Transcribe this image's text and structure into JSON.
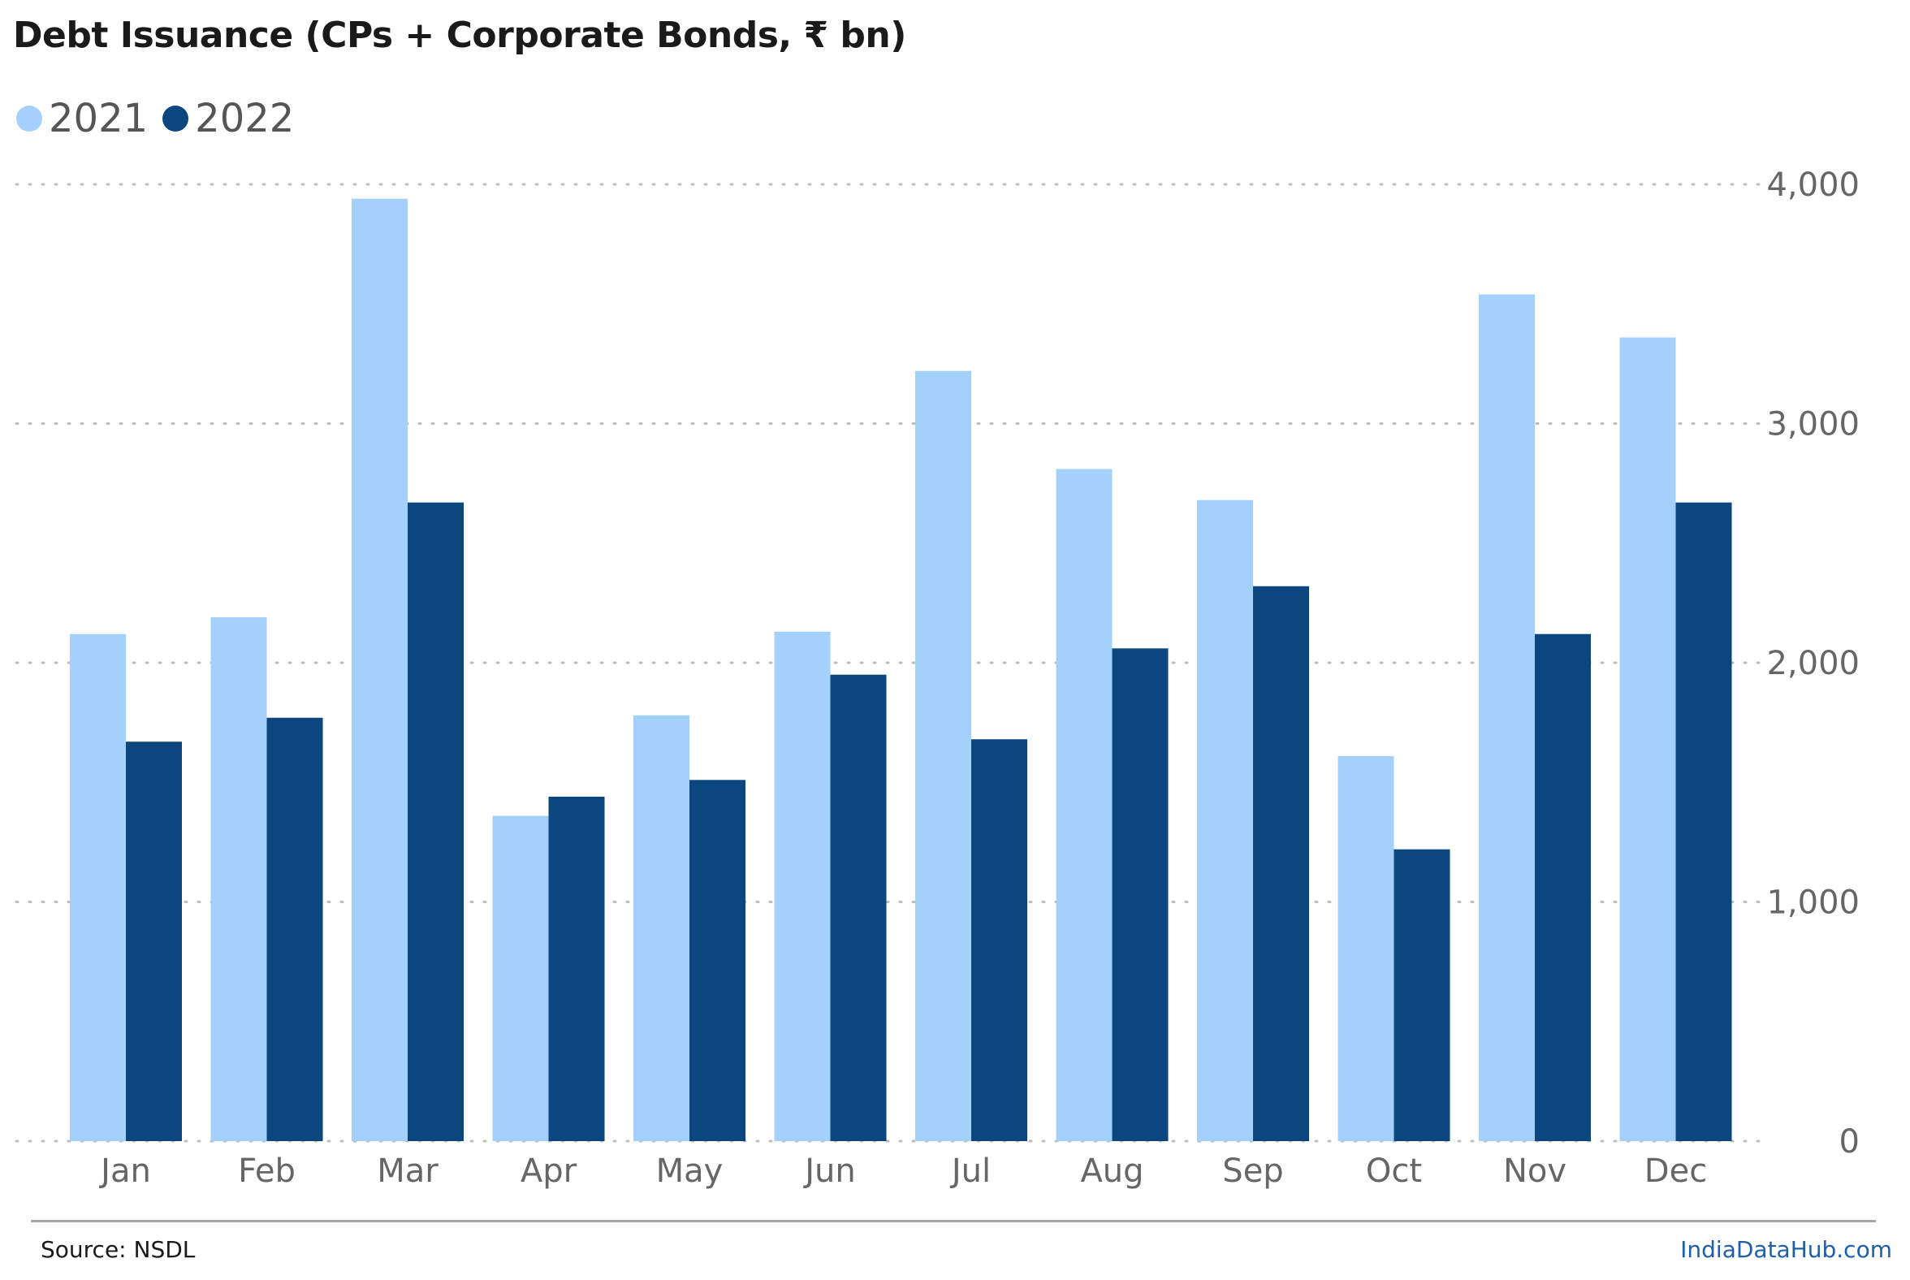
{
  "chart_data": {
    "type": "bar",
    "title": "Debt Issuance (CPs + Corporate Bonds, ₹ bn)",
    "categories": [
      "Jan",
      "Feb",
      "Mar",
      "Apr",
      "May",
      "Jun",
      "Jul",
      "Aug",
      "Sep",
      "Oct",
      "Nov",
      "Dec"
    ],
    "series": [
      {
        "name": "2021",
        "color": "#a3d1fc",
        "values": [
          2120,
          2190,
          3940,
          1360,
          1780,
          2130,
          3220,
          2810,
          2680,
          1610,
          3540,
          3360
        ]
      },
      {
        "name": "2022",
        "color": "#0b477e",
        "values": [
          1670,
          1770,
          2670,
          1440,
          1510,
          1950,
          1680,
          2060,
          2320,
          1220,
          2120,
          2670
        ]
      }
    ],
    "ylim": [
      0,
      4000
    ],
    "yticks": [
      0,
      1000,
      2000,
      3000,
      4000
    ],
    "ytick_labels": [
      "0",
      "1,000",
      "2,000",
      "3,000",
      "4,000"
    ],
    "y_axis_side": "right",
    "grid": true,
    "legend_position": "top-left"
  },
  "footer": {
    "source": "Source: NSDL",
    "brand": "IndiaDataHub.com"
  }
}
